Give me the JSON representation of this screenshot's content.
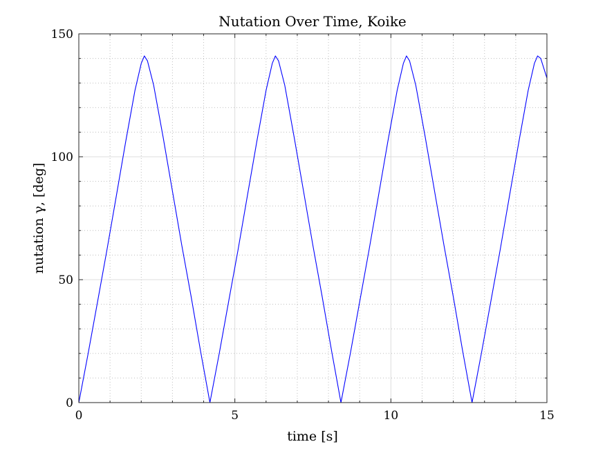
{
  "chart_data": {
    "type": "line",
    "title": "Nutation Over Time, Koike",
    "xlabel": "time [s]",
    "ylabel": "nutation γ, [deg]",
    "xlim": [
      0,
      15
    ],
    "ylim": [
      0,
      150
    ],
    "xticks": [
      0,
      5,
      10,
      15
    ],
    "yticks": [
      0,
      50,
      100,
      150
    ],
    "x_minor_ticks": [
      1,
      2,
      3,
      4,
      6,
      7,
      8,
      9,
      11,
      12,
      13,
      14
    ],
    "y_minor_ticks": [
      10,
      20,
      30,
      40,
      60,
      70,
      80,
      90,
      110,
      120,
      130,
      140
    ],
    "grid": true,
    "minor_grid": true,
    "series": [
      {
        "color": "#0000ff",
        "x": [
          0,
          0.3,
          0.6,
          0.9,
          1.2,
          1.5,
          1.8,
          2.0,
          2.1,
          2.2,
          2.4,
          2.7,
          3.0,
          3.3,
          3.6,
          3.9,
          4.2,
          4.5,
          4.8,
          5.1,
          5.4,
          5.7,
          6.0,
          6.2,
          6.3,
          6.4,
          6.6,
          6.9,
          7.2,
          7.5,
          7.8,
          8.1,
          8.4,
          8.7,
          9.0,
          9.3,
          9.6,
          9.9,
          10.2,
          10.4,
          10.5,
          10.6,
          10.8,
          11.1,
          11.4,
          11.7,
          12.0,
          12.3,
          12.6,
          12.9,
          13.2,
          13.5,
          13.8,
          14.1,
          14.4,
          14.6,
          14.7,
          14.8,
          15.0
        ],
        "y": [
          0,
          20,
          41,
          62,
          84,
          106,
          127,
          138,
          141,
          139,
          129,
          108,
          86,
          64,
          43,
          21,
          0,
          20,
          41,
          62,
          84,
          106,
          127,
          138,
          141,
          139,
          129,
          108,
          86,
          64,
          43,
          21,
          0,
          20,
          41,
          62,
          84,
          106,
          127,
          138,
          141,
          139,
          129,
          108,
          86,
          64,
          43,
          21,
          0,
          20,
          41,
          62,
          84,
          106,
          127,
          138,
          141,
          140,
          132
        ]
      }
    ]
  }
}
